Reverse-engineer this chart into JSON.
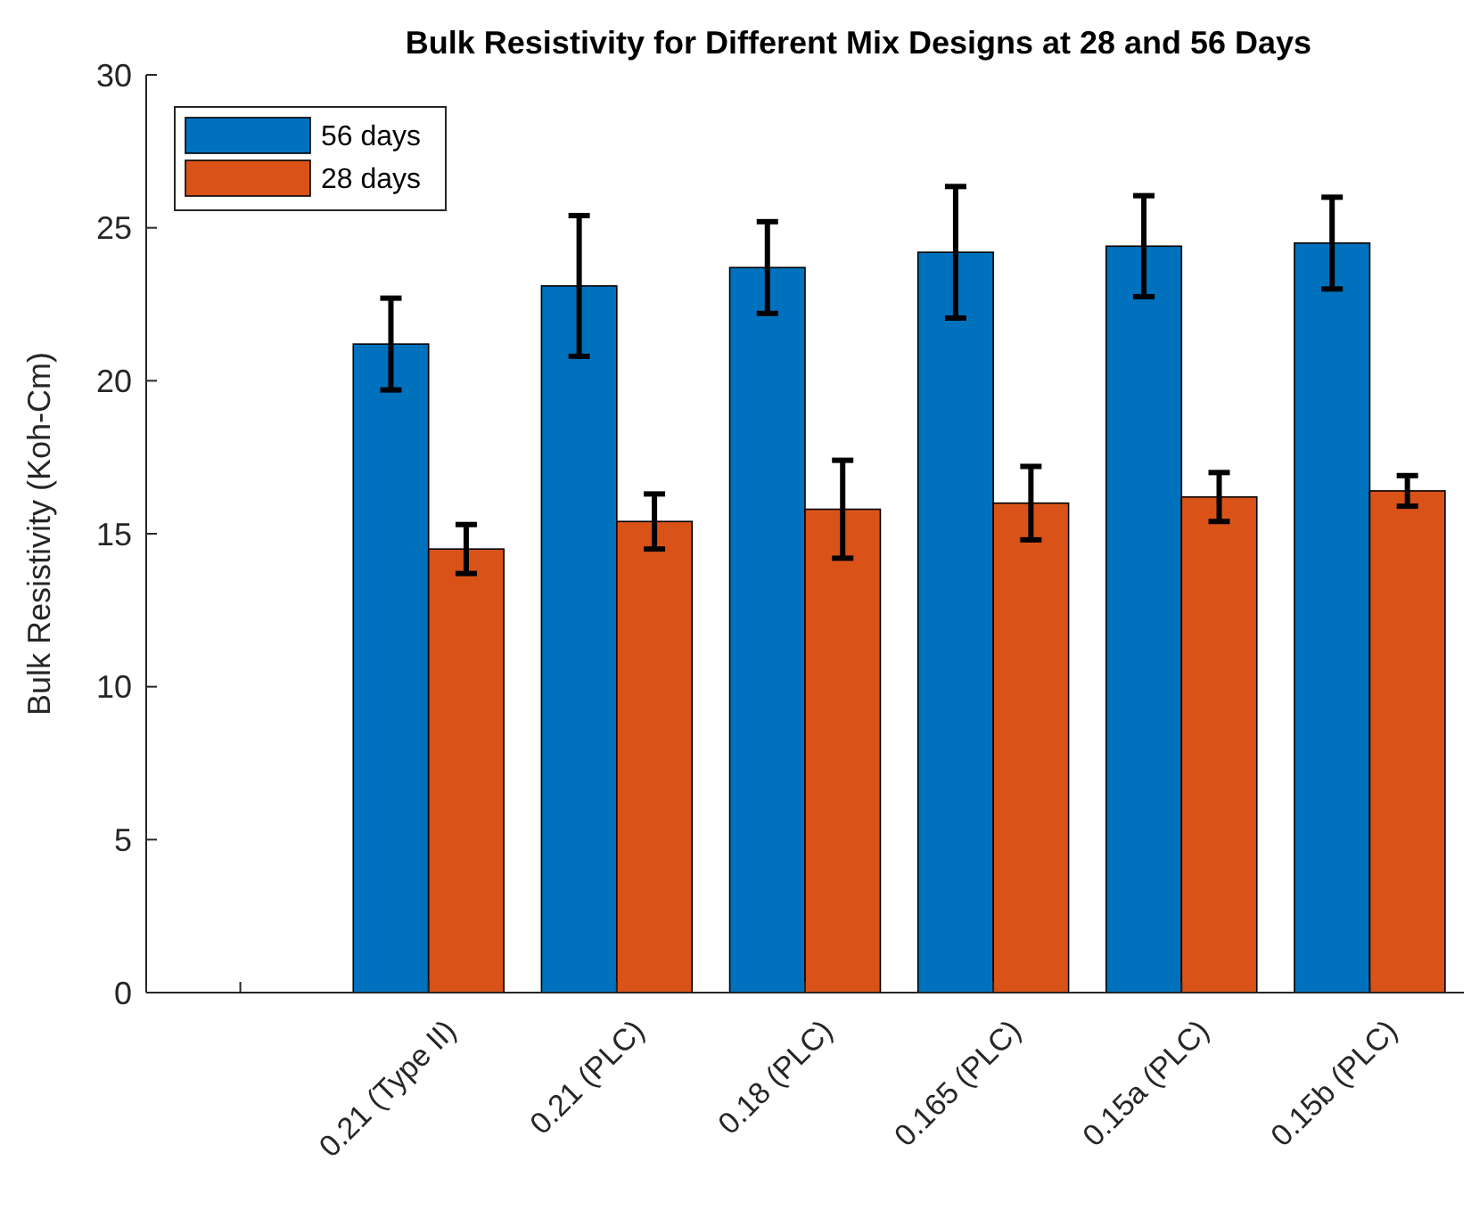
{
  "chart_data": {
    "type": "bar",
    "title": "Bulk Resistivity for Different Mix Designs at 28 and 56 Days",
    "ylabel": "Bulk Resistivity (Koh-Cm)",
    "categories": [
      null,
      "0.21 (Type II)",
      "0.21 (PLC)",
      "0.18 (PLC)",
      "0.165 (PLC)",
      "0.15a (PLC)",
      "0.15b (PLC)"
    ],
    "series": [
      {
        "name": "56 days",
        "color": "#0072bd",
        "values": [
          null,
          21.2,
          23.1,
          23.7,
          24.2,
          24.4,
          24.5
        ],
        "errors": [
          null,
          1.5,
          2.3,
          1.5,
          2.15,
          1.65,
          1.5
        ]
      },
      {
        "name": "28 days",
        "color": "#d95319",
        "values": [
          null,
          14.5,
          15.4,
          15.8,
          16.0,
          16.2,
          16.4
        ],
        "errors": [
          null,
          0.8,
          0.9,
          1.6,
          1.2,
          0.8,
          0.5
        ]
      }
    ],
    "ylim": [
      0,
      30
    ],
    "yticks": [
      0,
      5,
      10,
      15,
      20,
      25,
      30
    ],
    "grid": false,
    "legend": "top left"
  }
}
